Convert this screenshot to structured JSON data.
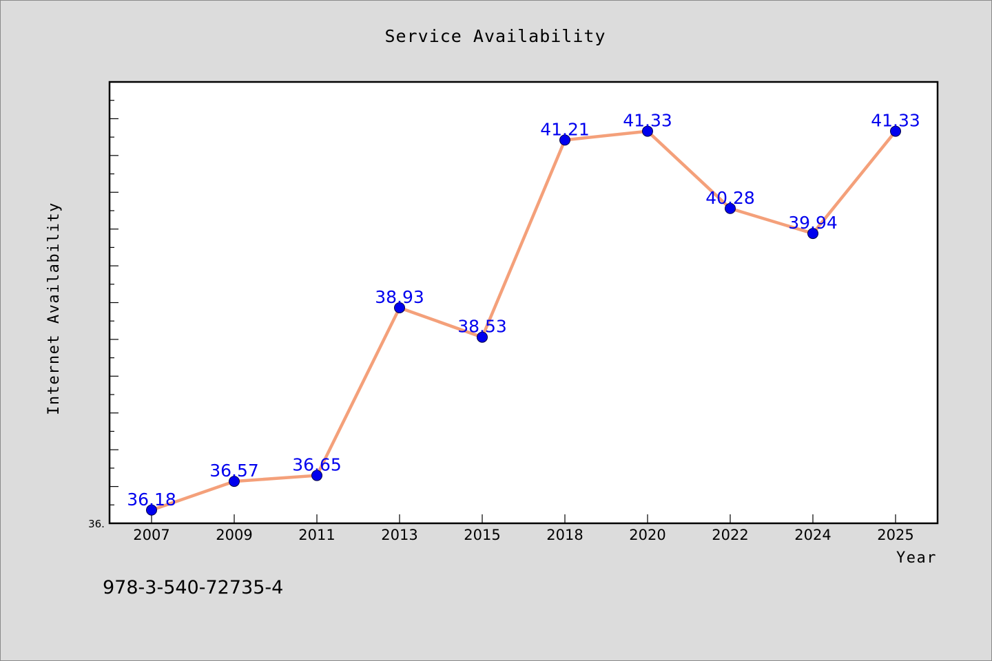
{
  "colors": {
    "background": "#dcdcdc",
    "plot_background": "#ffffff",
    "line": "#f4a07a",
    "marker": "#0000ee",
    "data_label": "#0000ee"
  },
  "footer": {
    "isbn": "978-3-540-72735-4"
  },
  "chart_data": {
    "type": "line",
    "title": "Service Availability",
    "xlabel": "Year",
    "ylabel": "Internet Availability",
    "categories": [
      "2007",
      "2009",
      "2011",
      "2013",
      "2015",
      "2018",
      "2020",
      "2022",
      "2024",
      "2025"
    ],
    "series": [
      {
        "values": [
          36.18,
          36.57,
          36.65,
          38.93,
          38.53,
          41.21,
          41.33,
          40.28,
          39.94,
          41.33
        ],
        "data_labels": [
          "36.18",
          "36.57",
          "36.65",
          "38.93",
          "38.53",
          "41.21",
          "41.33",
          "40.28",
          "39.94",
          "41.33"
        ]
      }
    ],
    "ylim": [
      36.0,
      42.0
    ],
    "ytick_labels": [
      "36."
    ],
    "grid": false,
    "legend": "none"
  }
}
